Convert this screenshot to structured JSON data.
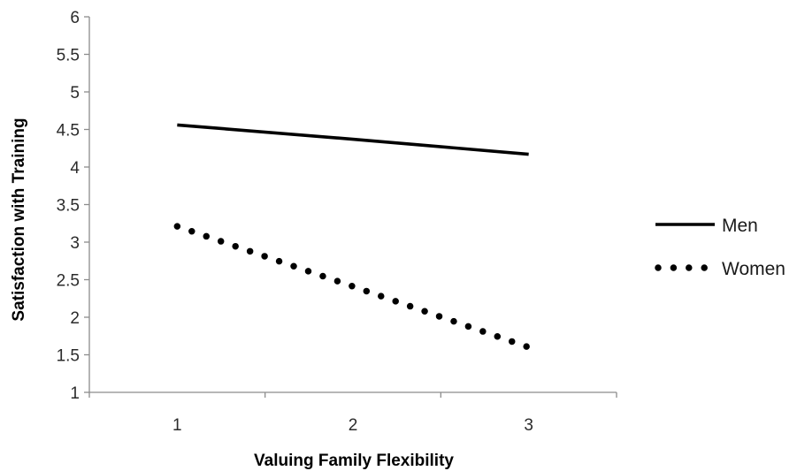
{
  "chart_data": {
    "type": "line",
    "title": "",
    "xlabel": "Valuing Family Flexibility",
    "ylabel": "Satisfaction with  Training",
    "x": [
      1,
      2,
      3
    ],
    "xticks": [
      "1",
      "2",
      "3"
    ],
    "ylim": [
      1,
      6
    ],
    "yticks": [
      "1",
      "1.5",
      "2",
      "2.5",
      "3",
      "3.5",
      "4",
      "4.5",
      "5",
      "5.5",
      "6"
    ],
    "grid": false,
    "legend_position": "right",
    "series": [
      {
        "name": "Men",
        "values": [
          4.56,
          4.37,
          4.17
        ],
        "style": "solid",
        "color": "#000000"
      },
      {
        "name": "Women",
        "values": [
          3.21,
          2.41,
          1.6
        ],
        "style": "dotted",
        "color": "#000000"
      }
    ]
  }
}
